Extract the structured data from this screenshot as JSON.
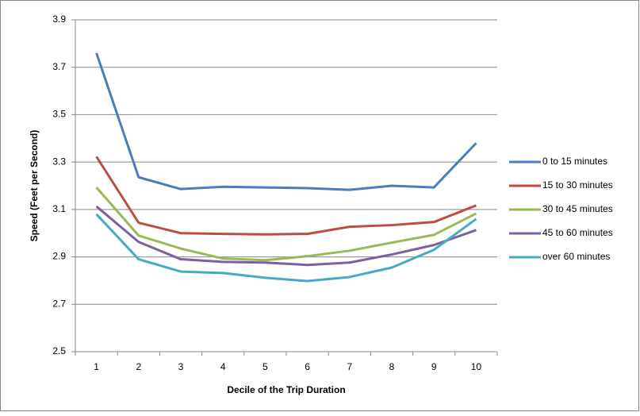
{
  "chart_data": {
    "type": "line",
    "x_label": "Decile of the Trip Duration",
    "y_label": "Speed (Feet per Second)",
    "categories": [
      "1",
      "2",
      "3",
      "4",
      "5",
      "6",
      "7",
      "8",
      "9",
      "10"
    ],
    "series": [
      {
        "name": "0 to 15 minutes",
        "color": "#4a7ebb",
        "values": [
          3.76,
          3.236,
          3.186,
          3.196,
          3.193,
          3.19,
          3.183,
          3.2,
          3.193,
          3.38
        ]
      },
      {
        "name": "15 to 30 minutes",
        "color": "#be4b48",
        "values": [
          3.323,
          3.044,
          3.0,
          2.997,
          2.995,
          2.997,
          3.027,
          3.034,
          3.047,
          3.117
        ]
      },
      {
        "name": "30 to 45 minutes",
        "color": "#98b954",
        "values": [
          3.193,
          2.99,
          2.935,
          2.893,
          2.886,
          2.903,
          2.926,
          2.96,
          2.993,
          3.083
        ]
      },
      {
        "name": "45 to 60 minutes",
        "color": "#7d60a0",
        "values": [
          3.113,
          2.963,
          2.89,
          2.879,
          2.876,
          2.866,
          2.876,
          2.91,
          2.95,
          3.013
        ]
      },
      {
        "name": "over 60 minutes",
        "color": "#46aac5",
        "values": [
          3.08,
          2.89,
          2.838,
          2.832,
          2.812,
          2.798,
          2.815,
          2.855,
          2.93,
          3.06
        ]
      }
    ],
    "ylim": [
      2.5,
      3.9
    ],
    "yticks": [
      2.5,
      2.7,
      2.9,
      3.1,
      3.3,
      3.5,
      3.7,
      3.9
    ],
    "grid": true,
    "legend": "right"
  }
}
